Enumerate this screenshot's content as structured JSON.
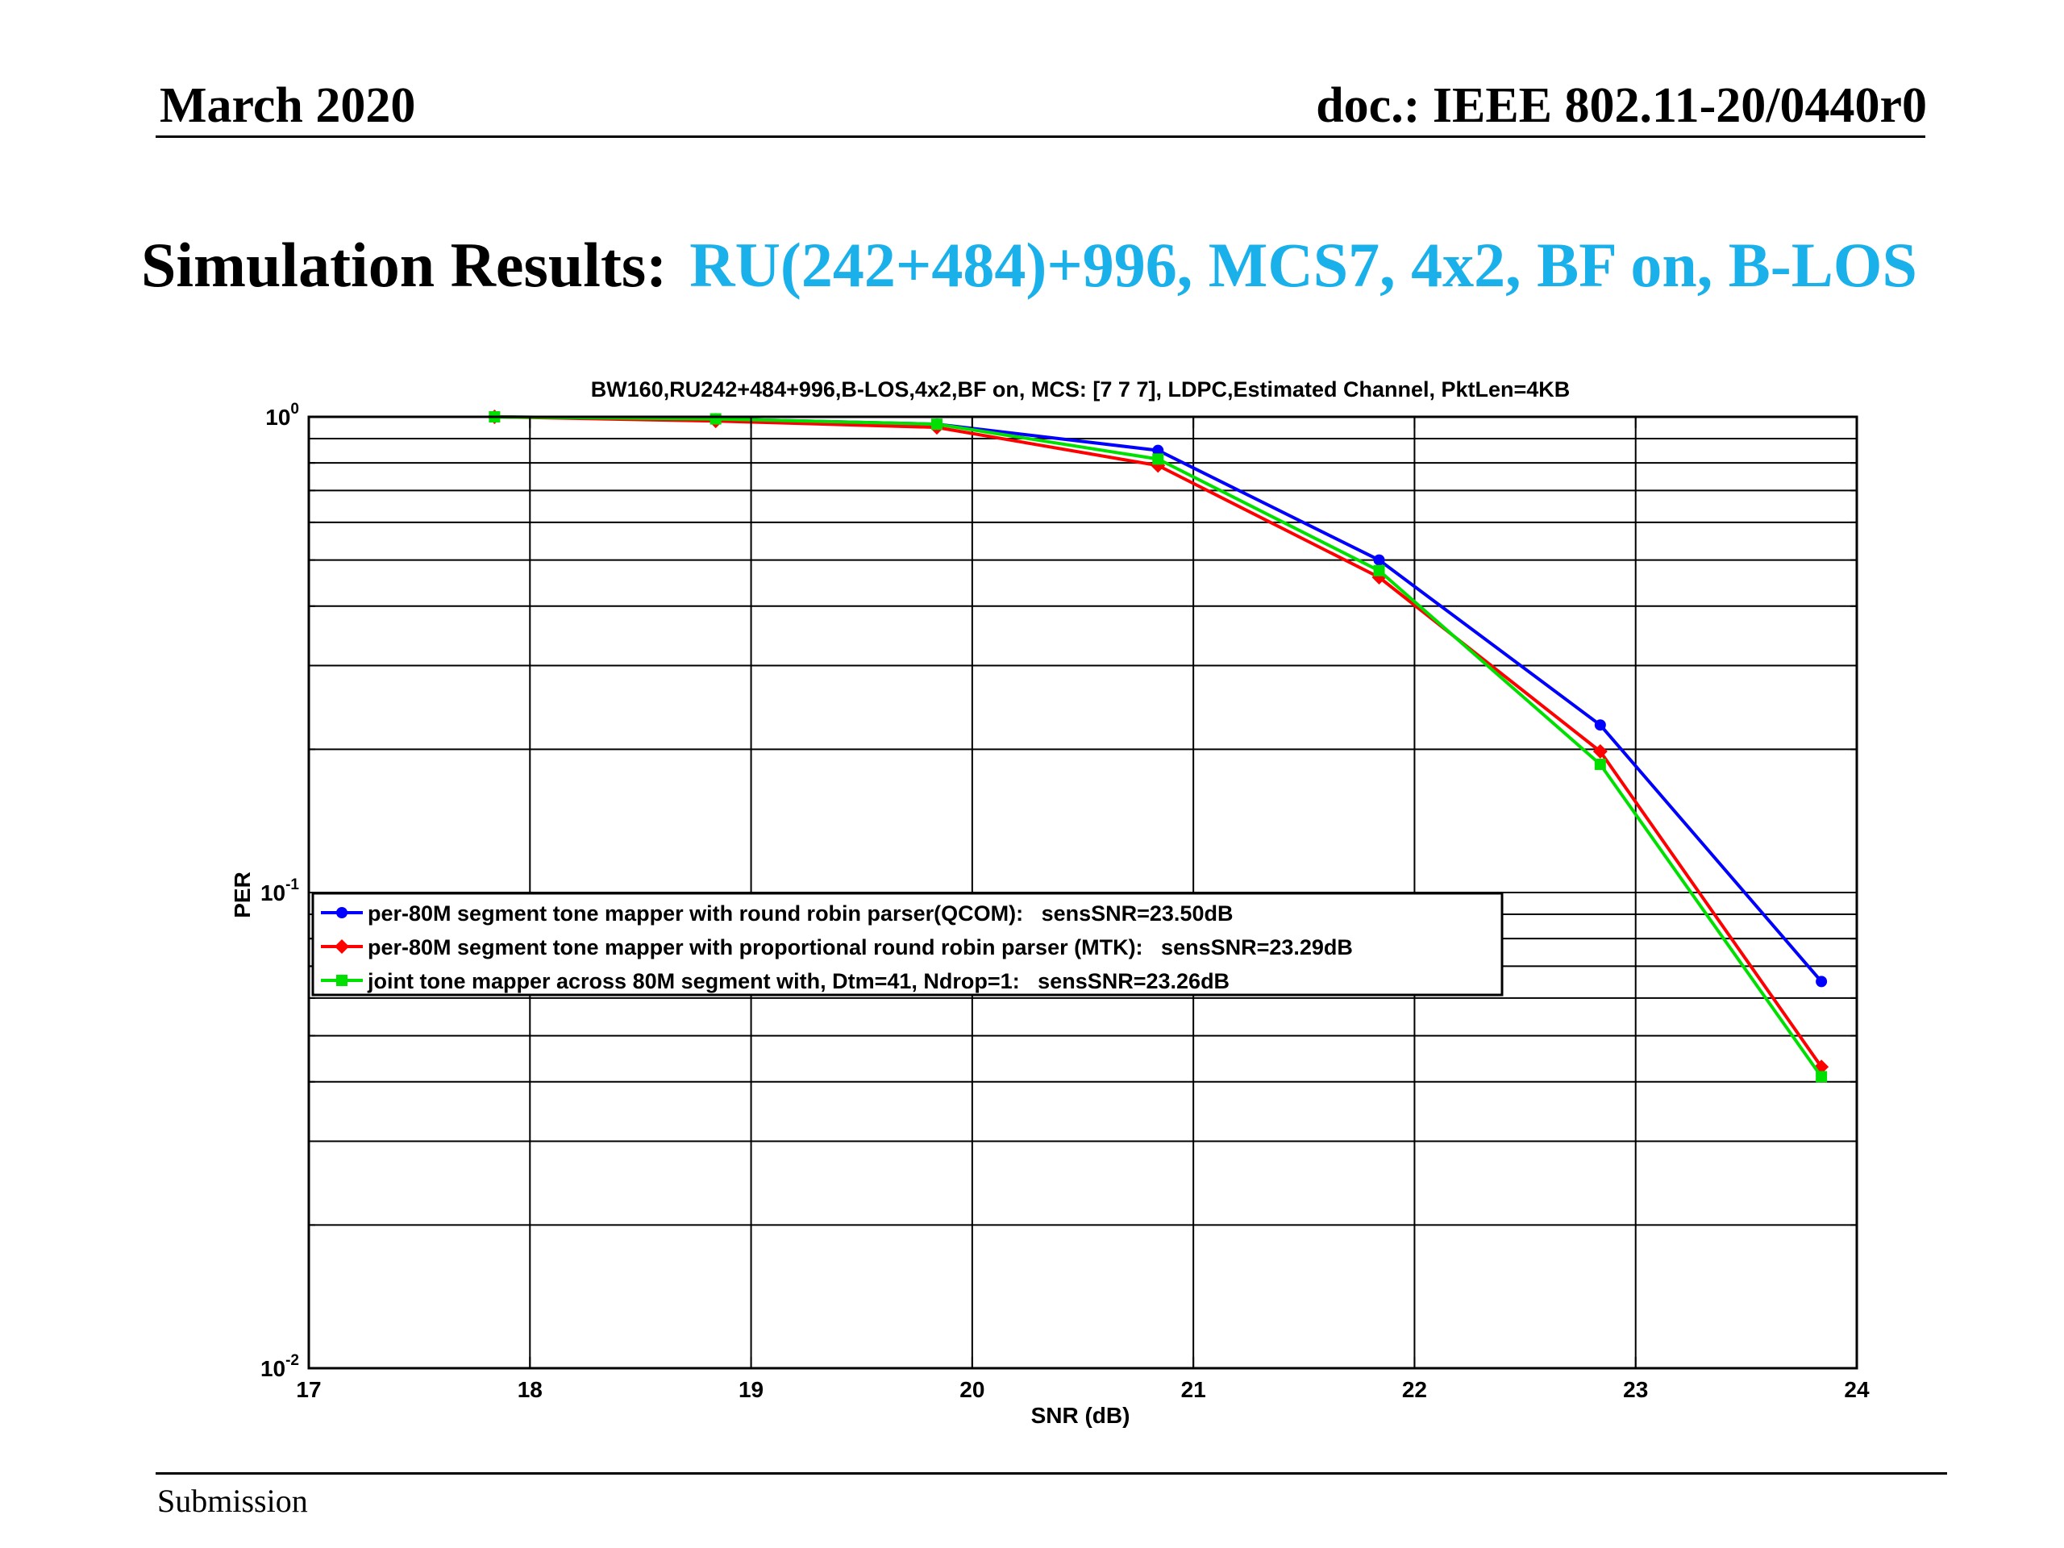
{
  "header": {
    "date": "March 2020",
    "doc": "doc.: IEEE 802.11-20/0440r0"
  },
  "slide": {
    "title_prefix": "Simulation Results:",
    "title_main": "RU(242+484)+996, MCS7, 4x2, BF on, B-LOS",
    "title_main_color": "#1ab0ea"
  },
  "footer": {
    "label": "Submission"
  },
  "chart_data": {
    "type": "line",
    "title": "BW160,RU242+484+996,B-LOS,4x2,BF on, MCS: [7  7  7], LDPC,Estimated Channel, PktLen=4KB",
    "xlabel": "SNR (dB)",
    "ylabel": "PER",
    "xlim": [
      17,
      24
    ],
    "ylim": [
      0.01,
      1
    ],
    "yscale": "log",
    "grid": true,
    "legend_position": "center-left",
    "xticks": [
      "17",
      "18",
      "19",
      "20",
      "21",
      "22",
      "23",
      "24"
    ],
    "yticks": [
      {
        "base": "10",
        "exp": "0"
      },
      {
        "base": "10",
        "exp": "-1"
      },
      {
        "base": "10",
        "exp": "-2"
      }
    ],
    "x": [
      17.84,
      18.84,
      19.84,
      20.84,
      21.84,
      22.84,
      23.84
    ],
    "series": [
      {
        "name": "per-80M segment tone mapper with round robin parser(QCOM):   sensSNR=23.50dB",
        "color": "#0000ff",
        "marker": "circle",
        "values": [
          1.0,
          0.99,
          0.965,
          0.85,
          0.5,
          0.225,
          0.065
        ]
      },
      {
        "name": "per-80M segment tone mapper with proportional round robin parser (MTK):   sensSNR=23.29dB",
        "color": "#ff0000",
        "marker": "diamond",
        "values": [
          1.0,
          0.98,
          0.95,
          0.79,
          0.46,
          0.198,
          0.043
        ]
      },
      {
        "name": "joint tone mapper across 80M segment with, Dtm=41, Ndrop=1:   sensSNR=23.26dB",
        "color": "#00e000",
        "marker": "square",
        "values": [
          1.0,
          0.99,
          0.965,
          0.815,
          0.475,
          0.186,
          0.041
        ]
      }
    ]
  }
}
